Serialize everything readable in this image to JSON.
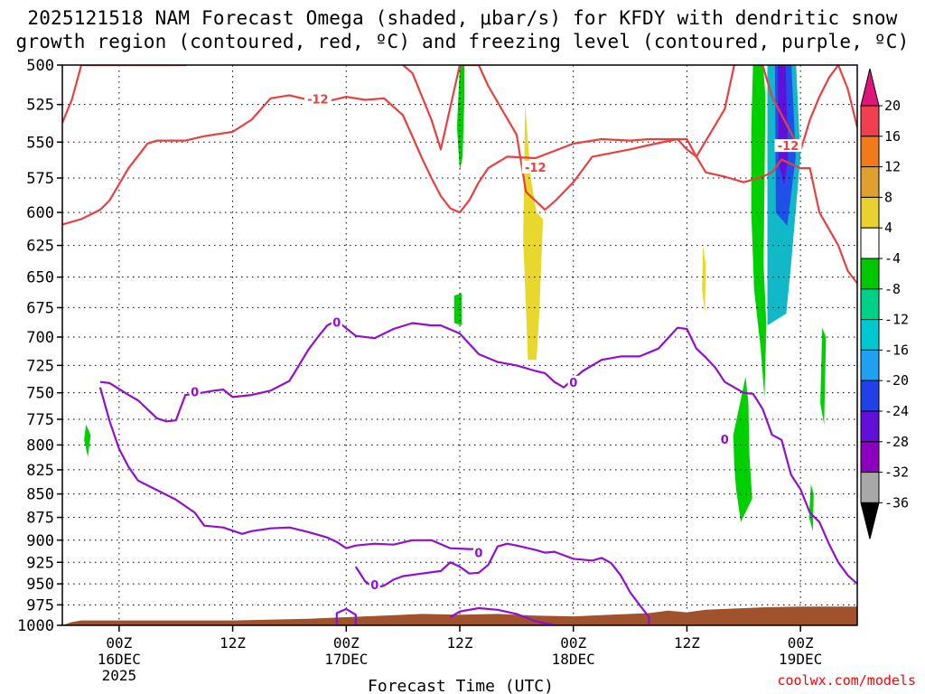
{
  "title_line1": "2025121518 NAM Forecast Omega (shaded, μbar/s) for KFDY with dendritic snow",
  "title_line2": "growth region (contoured, red, ºC) and freezing level (contoured, purple, ºC)",
  "chart_data": {
    "type": "heatmap",
    "xlabel": "Forecast Time (UTC)",
    "y_axis": {
      "ticks": [
        500,
        525,
        550,
        575,
        600,
        625,
        650,
        675,
        700,
        725,
        750,
        775,
        800,
        825,
        850,
        875,
        900,
        925,
        950,
        975,
        1000
      ],
      "range": [
        1000,
        500
      ],
      "units": "hPa",
      "scale": "log-pressure"
    },
    "x_axis": {
      "range_hours": [
        18,
        102
      ],
      "ticks": [
        {
          "hour": 24,
          "lines": [
            "00Z",
            "16DEC",
            "2025"
          ]
        },
        {
          "hour": 36,
          "lines": [
            "12Z"
          ]
        },
        {
          "hour": 48,
          "lines": [
            "00Z",
            "17DEC"
          ]
        },
        {
          "hour": 60,
          "lines": [
            "12Z"
          ]
        },
        {
          "hour": 72,
          "lines": [
            "00Z",
            "18DEC"
          ]
        },
        {
          "hour": 84,
          "lines": [
            "12Z"
          ]
        },
        {
          "hour": 96,
          "lines": [
            "00Z",
            "19DEC"
          ]
        }
      ]
    },
    "grid": true,
    "colorbar": {
      "labels": [
        "20",
        "16",
        "12",
        "8",
        "4",
        "-4",
        "-8",
        "-12",
        "-16",
        "-20",
        "-24",
        "-28",
        "-32",
        "-36"
      ],
      "colors": [
        "#e0157a",
        "#f0404e",
        "#f07a1c",
        "#e0a030",
        "#e8d230",
        "#ffffff",
        "#00c800",
        "#00d088",
        "#00c8d0",
        "#20a0f0",
        "#2040e8",
        "#6010d8",
        "#8c00c0",
        "#a8a8a8",
        "#000000"
      ]
    },
    "contour_labels": {
      "dgz": "-12",
      "freezing": "0"
    },
    "contours": {
      "dgz_upper": [
        [
          18,
          537
        ],
        [
          19,
          522
        ],
        [
          20,
          500
        ],
        [
          31,
          500
        ],
        [
          33,
          495
        ],
        [
          53,
          495
        ],
        [
          55,
          505
        ],
        [
          57,
          535
        ],
        [
          58,
          555
        ],
        [
          60,
          500
        ],
        [
          62,
          500
        ],
        [
          63,
          513
        ],
        [
          66,
          545
        ],
        [
          67,
          585
        ],
        [
          69,
          598
        ],
        [
          70,
          592
        ],
        [
          72,
          578
        ],
        [
          74,
          560
        ],
        [
          78,
          555
        ],
        [
          80,
          552
        ],
        [
          83,
          548
        ],
        [
          84,
          548
        ],
        [
          85,
          560
        ],
        [
          88,
          528
        ],
        [
          89,
          500
        ],
        [
          91,
          497
        ],
        [
          92,
          500
        ],
        [
          93,
          520
        ],
        [
          96,
          556
        ],
        [
          97,
          535
        ],
        [
          98,
          520
        ],
        [
          99,
          508
        ],
        [
          100,
          500
        ],
        [
          101,
          515
        ],
        [
          102,
          540
        ]
      ],
      "dgz_lower": [
        [
          18,
          609
        ],
        [
          20,
          605
        ],
        [
          22,
          598
        ],
        [
          23,
          591
        ],
        [
          25,
          568
        ],
        [
          27,
          551
        ],
        [
          28,
          549
        ],
        [
          31,
          549
        ],
        [
          33,
          546
        ],
        [
          36,
          543
        ],
        [
          38,
          535
        ],
        [
          40,
          521
        ],
        [
          42,
          519
        ],
        [
          44,
          522
        ],
        [
          46,
          523
        ],
        [
          48,
          520
        ],
        [
          50,
          522
        ],
        [
          52,
          521
        ],
        [
          54,
          532
        ],
        [
          56,
          561
        ],
        [
          57,
          575
        ],
        [
          58,
          588
        ],
        [
          59,
          597
        ],
        [
          60,
          600
        ],
        [
          61,
          591
        ],
        [
          62,
          578
        ],
        [
          63,
          568
        ],
        [
          65,
          560
        ],
        [
          68,
          561
        ],
        [
          70,
          556
        ],
        [
          72,
          551
        ],
        [
          75,
          548
        ],
        [
          78,
          549
        ],
        [
          80,
          548
        ],
        [
          83,
          548
        ],
        [
          84,
          555
        ],
        [
          85,
          560
        ],
        [
          86,
          571
        ],
        [
          88,
          574
        ],
        [
          90,
          578
        ],
        [
          92,
          574
        ],
        [
          93,
          571
        ],
        [
          94,
          562
        ],
        [
          96,
          568
        ],
        [
          97,
          568
        ],
        [
          98,
          600
        ],
        [
          100,
          625
        ],
        [
          101,
          645
        ],
        [
          102,
          655
        ]
      ],
      "frz_upper": [
        [
          22,
          740
        ],
        [
          23,
          741
        ],
        [
          25,
          752
        ],
        [
          26,
          757
        ],
        [
          28,
          774
        ],
        [
          29,
          777
        ],
        [
          30,
          776
        ],
        [
          31,
          752
        ],
        [
          32,
          751
        ],
        [
          34,
          748
        ],
        [
          35,
          747
        ],
        [
          36,
          754
        ],
        [
          38,
          752
        ],
        [
          40,
          748
        ],
        [
          42,
          739
        ],
        [
          43,
          725
        ],
        [
          44,
          711
        ],
        [
          45,
          700
        ],
        [
          46,
          690
        ],
        [
          47,
          686
        ],
        [
          49,
          699
        ],
        [
          51,
          701
        ],
        [
          53,
          693
        ],
        [
          55,
          688
        ],
        [
          57,
          690
        ],
        [
          58,
          690
        ],
        [
          60,
          697
        ],
        [
          62,
          715
        ],
        [
          64,
          722
        ],
        [
          66,
          725
        ],
        [
          68,
          730
        ],
        [
          69,
          732
        ],
        [
          70,
          740
        ],
        [
          71,
          745
        ],
        [
          73,
          730
        ],
        [
          75,
          720
        ],
        [
          77,
          717
        ],
        [
          79,
          717
        ],
        [
          81,
          710
        ],
        [
          83,
          692
        ],
        [
          84,
          693
        ],
        [
          85,
          710
        ],
        [
          86,
          718
        ],
        [
          87,
          727
        ],
        [
          88,
          740
        ],
        [
          89,
          745
        ],
        [
          90,
          750
        ],
        [
          91,
          751
        ],
        [
          92,
          765
        ],
        [
          93,
          790
        ],
        [
          94,
          795
        ],
        [
          95,
          830
        ],
        [
          96,
          845
        ],
        [
          97,
          870
        ],
        [
          98,
          880
        ],
        [
          99,
          904
        ],
        [
          100,
          925
        ],
        [
          101,
          940
        ],
        [
          102,
          950
        ]
      ],
      "frz_lower": [
        [
          22,
          745
        ],
        [
          23,
          777
        ],
        [
          24,
          804
        ],
        [
          25,
          822
        ],
        [
          26,
          836
        ],
        [
          28,
          846
        ],
        [
          30,
          856
        ],
        [
          32,
          870
        ],
        [
          33,
          884
        ],
        [
          35,
          886
        ],
        [
          37,
          893
        ],
        [
          38,
          890
        ],
        [
          40,
          887
        ],
        [
          42,
          886
        ],
        [
          44,
          891
        ],
        [
          46,
          897
        ],
        [
          47,
          902
        ],
        [
          48,
          909
        ],
        [
          49,
          906
        ],
        [
          51,
          904
        ],
        [
          53,
          905
        ],
        [
          55,
          900
        ],
        [
          57,
          900
        ],
        [
          59,
          909
        ],
        [
          61,
          910
        ],
        [
          62,
          910
        ]
      ],
      "frz_island": [
        [
          49,
          930
        ],
        [
          50,
          947
        ],
        [
          51,
          955
        ],
        [
          52,
          952
        ],
        [
          53,
          945
        ],
        [
          54,
          941
        ],
        [
          56,
          938
        ],
        [
          58,
          935
        ],
        [
          59,
          925
        ],
        [
          60,
          930
        ],
        [
          61,
          938
        ],
        [
          62,
          937
        ],
        [
          63,
          928
        ],
        [
          64,
          907
        ],
        [
          65,
          904
        ],
        [
          66,
          906
        ],
        [
          68,
          911
        ],
        [
          69,
          914
        ],
        [
          70,
          913
        ],
        [
          72,
          921
        ],
        [
          74,
          923
        ],
        [
          75,
          920
        ],
        [
          76,
          926
        ],
        [
          77,
          940
        ],
        [
          78,
          960
        ],
        [
          79,
          975
        ],
        [
          80,
          990
        ],
        [
          80,
          1000
        ]
      ],
      "frz_small": [
        [
          47,
          1000
        ],
        [
          47,
          985
        ],
        [
          48,
          980
        ],
        [
          49,
          987
        ],
        [
          49,
          1000
        ]
      ],
      "frz_bottom": [
        [
          59,
          990
        ],
        [
          60,
          983
        ],
        [
          62,
          979
        ],
        [
          64,
          981
        ],
        [
          66,
          986
        ],
        [
          68,
          995
        ],
        [
          70,
          1000
        ]
      ]
    },
    "shaded": {
      "green": [
        [
          [
            60,
            500
          ],
          [
            60.5,
            500
          ],
          [
            60.5,
            520
          ],
          [
            60.3,
            560
          ],
          [
            60,
            570
          ],
          [
            59.7,
            540
          ]
        ],
        [
          [
            20.5,
            780
          ],
          [
            21,
            790
          ],
          [
            20.7,
            812
          ],
          [
            20.3,
            795
          ]
        ],
        [
          [
            59.4,
            665
          ],
          [
            60.2,
            663
          ],
          [
            60.2,
            690
          ],
          [
            59.4,
            688
          ]
        ],
        [
          [
            91,
            495
          ],
          [
            92,
            495
          ],
          [
            92.3,
            520
          ],
          [
            92.2,
            580
          ],
          [
            92.1,
            640
          ],
          [
            92.4,
            690
          ],
          [
            92.2,
            755
          ],
          [
            91.8,
            710
          ],
          [
            91.1,
            660
          ],
          [
            90.8,
            600
          ],
          [
            90.8,
            540
          ]
        ],
        [
          [
            90.2,
            735
          ],
          [
            90.5,
            760
          ],
          [
            90.6,
            810
          ],
          [
            90.9,
            855
          ],
          [
            89.7,
            880
          ],
          [
            89.2,
            845
          ],
          [
            89.0,
            820
          ],
          [
            88.9,
            790
          ]
        ],
        [
          [
            98.3,
            692
          ],
          [
            98.7,
            700
          ],
          [
            98.5,
            780
          ],
          [
            98.1,
            760
          ]
        ],
        [
          [
            97.1,
            840
          ],
          [
            97.4,
            850
          ],
          [
            97.3,
            890
          ],
          [
            96.9,
            875
          ]
        ]
      ],
      "yellow": [
        [
          [
            66.9,
            525
          ],
          [
            67.5,
            575
          ],
          [
            68.1,
            600
          ],
          [
            68.8,
            605
          ],
          [
            68.4,
            680
          ],
          [
            68.1,
            720
          ],
          [
            67.2,
            720
          ],
          [
            66.7,
            620
          ]
        ],
        [
          [
            85.7,
            625
          ],
          [
            86.0,
            640
          ],
          [
            85.9,
            680
          ],
          [
            85.6,
            660
          ]
        ]
      ],
      "cyan": [
        [
          [
            92.5,
            495
          ],
          [
            95.5,
            495
          ],
          [
            96,
            560
          ],
          [
            95,
            640
          ],
          [
            94.5,
            680
          ],
          [
            92.5,
            690
          ]
        ]
      ],
      "blue": [
        [
          [
            93.3,
            495
          ],
          [
            95.0,
            495
          ],
          [
            95.5,
            560
          ],
          [
            94.6,
            610
          ],
          [
            93.4,
            600
          ]
        ]
      ],
      "purple": [
        [
          [
            93.6,
            495
          ],
          [
            94.4,
            495
          ],
          [
            94.7,
            560
          ],
          [
            94.3,
            580
          ],
          [
            93.7,
            565
          ]
        ]
      ]
    }
  },
  "footer": {
    "xtitle": "Forecast Time (UTC)",
    "credit": "coolwx.com/models"
  }
}
